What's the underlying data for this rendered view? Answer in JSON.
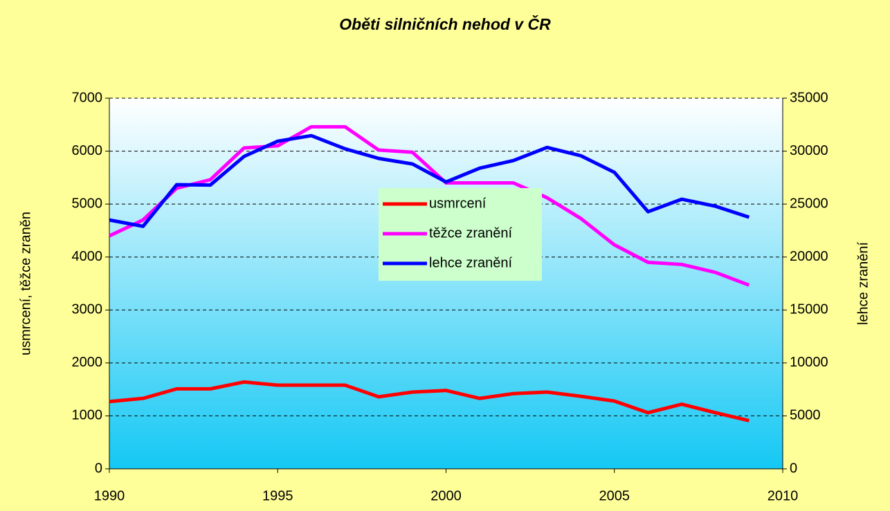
{
  "chart_data": {
    "type": "line",
    "title": "Oběti silničních nehod v ČR",
    "y_label": "usmrcení, těžce zraněn",
    "y2_label": "lehce zranění",
    "x": [
      1990,
      1991,
      1992,
      1993,
      1994,
      1995,
      1996,
      1997,
      1998,
      1999,
      2000,
      2001,
      2002,
      2003,
      2004,
      2005,
      2006,
      2007,
      2008,
      2009
    ],
    "xlim": [
      1990,
      2010
    ],
    "xticks": [
      1990,
      1995,
      2000,
      2005,
      2010
    ],
    "ylim": [
      0,
      7000
    ],
    "yticks": [
      0,
      1000,
      2000,
      3000,
      4000,
      5000,
      6000,
      7000
    ],
    "y2lim": [
      0,
      35000
    ],
    "y2ticks": [
      0,
      5000,
      10000,
      15000,
      20000,
      25000,
      30000,
      35000
    ],
    "grid": true,
    "legend": "center",
    "series": [
      {
        "name": "usmrcení",
        "color": "#ff0000",
        "values": [
          1270,
          1330,
          1510,
          1510,
          1640,
          1580,
          1580,
          1580,
          1360,
          1450,
          1480,
          1330,
          1420,
          1450,
          1370,
          1280,
          1060,
          1220,
          1060,
          910
        ]
      },
      {
        "name": "těžce zranění",
        "color": "#ff00ff",
        "values": [
          4400,
          4700,
          5300,
          5460,
          6060,
          6100,
          6460,
          6460,
          6020,
          5980,
          5400,
          5400,
          5400,
          5120,
          4730,
          4230,
          3900,
          3860,
          3710,
          3470
        ]
      },
      {
        "name": "lehce zranění",
        "color": "#0000ff",
        "axis": "y2",
        "values": [
          23500,
          22900,
          26830,
          26800,
          29500,
          30940,
          31460,
          30220,
          29310,
          28790,
          27090,
          28390,
          29110,
          30350,
          29570,
          28000,
          24280,
          25460,
          24800,
          23760
        ]
      }
    ]
  }
}
